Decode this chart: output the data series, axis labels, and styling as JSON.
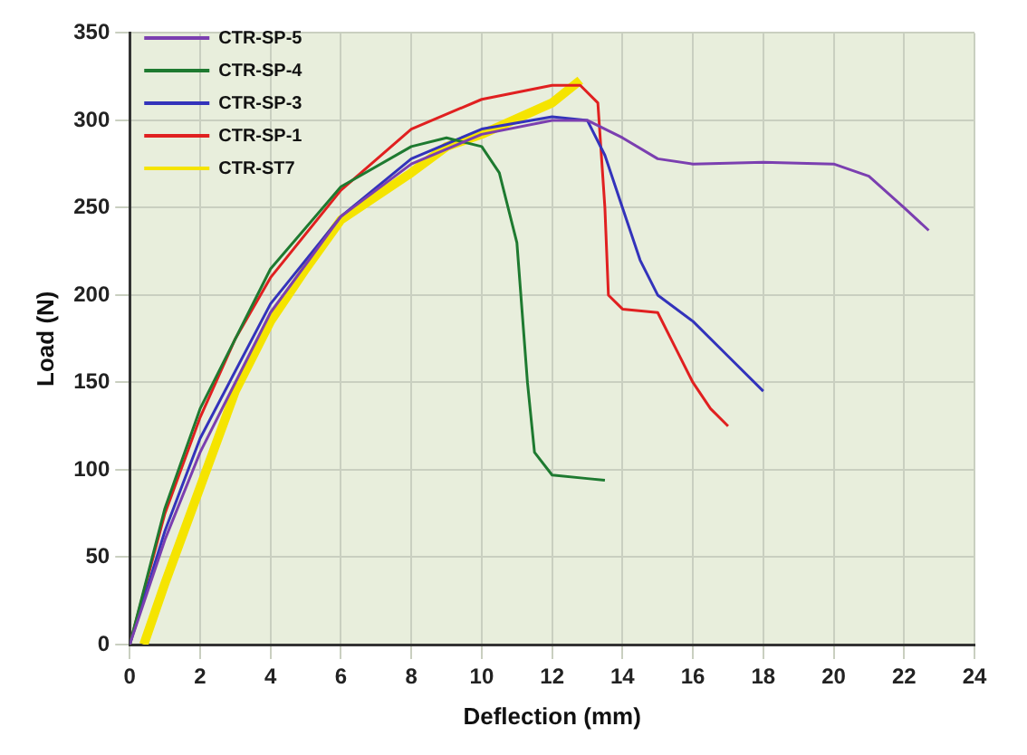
{
  "chart_data": {
    "type": "line",
    "xlabel": "Deflection (mm)",
    "ylabel": "Load (N)",
    "xlim": [
      0,
      24
    ],
    "xticks": [
      0,
      2,
      4,
      6,
      8,
      10,
      12,
      14,
      16,
      18,
      20,
      22,
      24
    ],
    "ylim": [
      0,
      350
    ],
    "yticks": [
      0,
      50,
      100,
      150,
      200,
      250,
      300,
      350
    ],
    "grid": true,
    "legend": "top left",
    "marker": "none",
    "series": [
      {
        "name": "CTR-SP-5",
        "color": "#7b3fb0",
        "x": [
          0,
          1,
          2,
          4,
          6,
          8,
          10,
          12,
          13,
          14,
          15,
          16,
          18,
          20,
          21,
          22,
          22.7
        ],
        "values": [
          0,
          60,
          110,
          190,
          245,
          275,
          292,
          300,
          300,
          290,
          278,
          275,
          276,
          275,
          268,
          250,
          237
        ]
      },
      {
        "name": "CTR-SP-4",
        "color": "#1e7a30",
        "x": [
          0,
          1,
          2,
          4,
          6,
          8,
          9,
          10,
          10.5,
          11,
          11.3,
          11.5,
          12,
          13,
          13.5
        ],
        "values": [
          0,
          78,
          135,
          215,
          262,
          285,
          290,
          285,
          270,
          230,
          150,
          110,
          97,
          95,
          94
        ]
      },
      {
        "name": "CTR-SP-3",
        "color": "#3333bb",
        "x": [
          0,
          1,
          2,
          4,
          6,
          8,
          10,
          12,
          13,
          13.5,
          14,
          14.5,
          15,
          16,
          17,
          18
        ],
        "values": [
          0,
          65,
          118,
          195,
          245,
          278,
          295,
          302,
          300,
          280,
          250,
          220,
          200,
          185,
          165,
          145
        ]
      },
      {
        "name": "CTR-SP-1",
        "color": "#e02020",
        "x": [
          0,
          1,
          2,
          3,
          4,
          6,
          8,
          10,
          12,
          12.8,
          13.3,
          13.5,
          13.6,
          14,
          15,
          15.5,
          16,
          16.5,
          17
        ],
        "values": [
          0,
          75,
          130,
          175,
          210,
          260,
          295,
          312,
          320,
          320,
          310,
          250,
          200,
          192,
          190,
          170,
          150,
          135,
          125
        ]
      },
      {
        "name": "CTR-ST7",
        "color": "#f5e400",
        "x": [
          0.4,
          1,
          2,
          3,
          4,
          5,
          6,
          8,
          9,
          10,
          12,
          12.8
        ],
        "values": [
          0,
          35,
          90,
          145,
          185,
          215,
          243,
          270,
          285,
          292,
          310,
          323
        ]
      }
    ]
  }
}
